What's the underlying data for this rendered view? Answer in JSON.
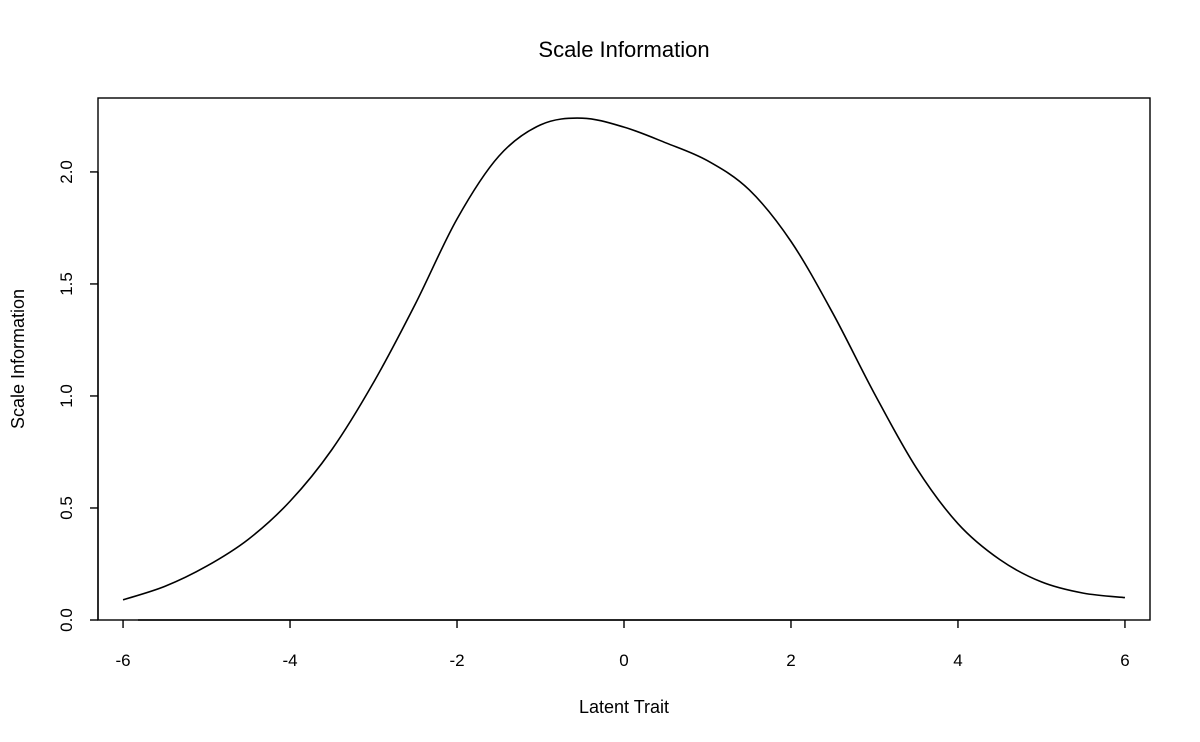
{
  "chart_data": {
    "type": "line",
    "title": "Scale Information",
    "xlabel": "Latent Trait",
    "ylabel": "Scale Information",
    "xlim": [
      -6.3,
      6.3
    ],
    "ylim": [
      0,
      2.33
    ],
    "xticks": [
      -6,
      -4,
      -2,
      0,
      2,
      4,
      6
    ],
    "xtick_labels": [
      "-6",
      "-4",
      "-2",
      "0",
      "2",
      "4",
      "6"
    ],
    "yticks": [
      0,
      0.5,
      1,
      1.5,
      2
    ],
    "ytick_labels": [
      "0.0",
      "0.5",
      "1.0",
      "1.5",
      "2.0"
    ],
    "grid": false,
    "legend": "none",
    "series": [
      {
        "color": "#000000",
        "x": [
          -6.0,
          -5.5,
          -5.0,
          -4.5,
          -4.0,
          -3.5,
          -3.0,
          -2.5,
          -2.0,
          -1.5,
          -1.0,
          -0.5,
          0.0,
          0.5,
          1.0,
          1.5,
          2.0,
          2.5,
          3.0,
          3.5,
          4.0,
          4.5,
          5.0,
          5.5,
          6.0
        ],
        "y": [
          0.09,
          0.15,
          0.24,
          0.36,
          0.53,
          0.76,
          1.06,
          1.41,
          1.79,
          2.07,
          2.21,
          2.24,
          2.2,
          2.13,
          2.05,
          1.92,
          1.69,
          1.37,
          1.01,
          0.68,
          0.43,
          0.27,
          0.17,
          0.12,
          0.1
        ]
      }
    ]
  }
}
